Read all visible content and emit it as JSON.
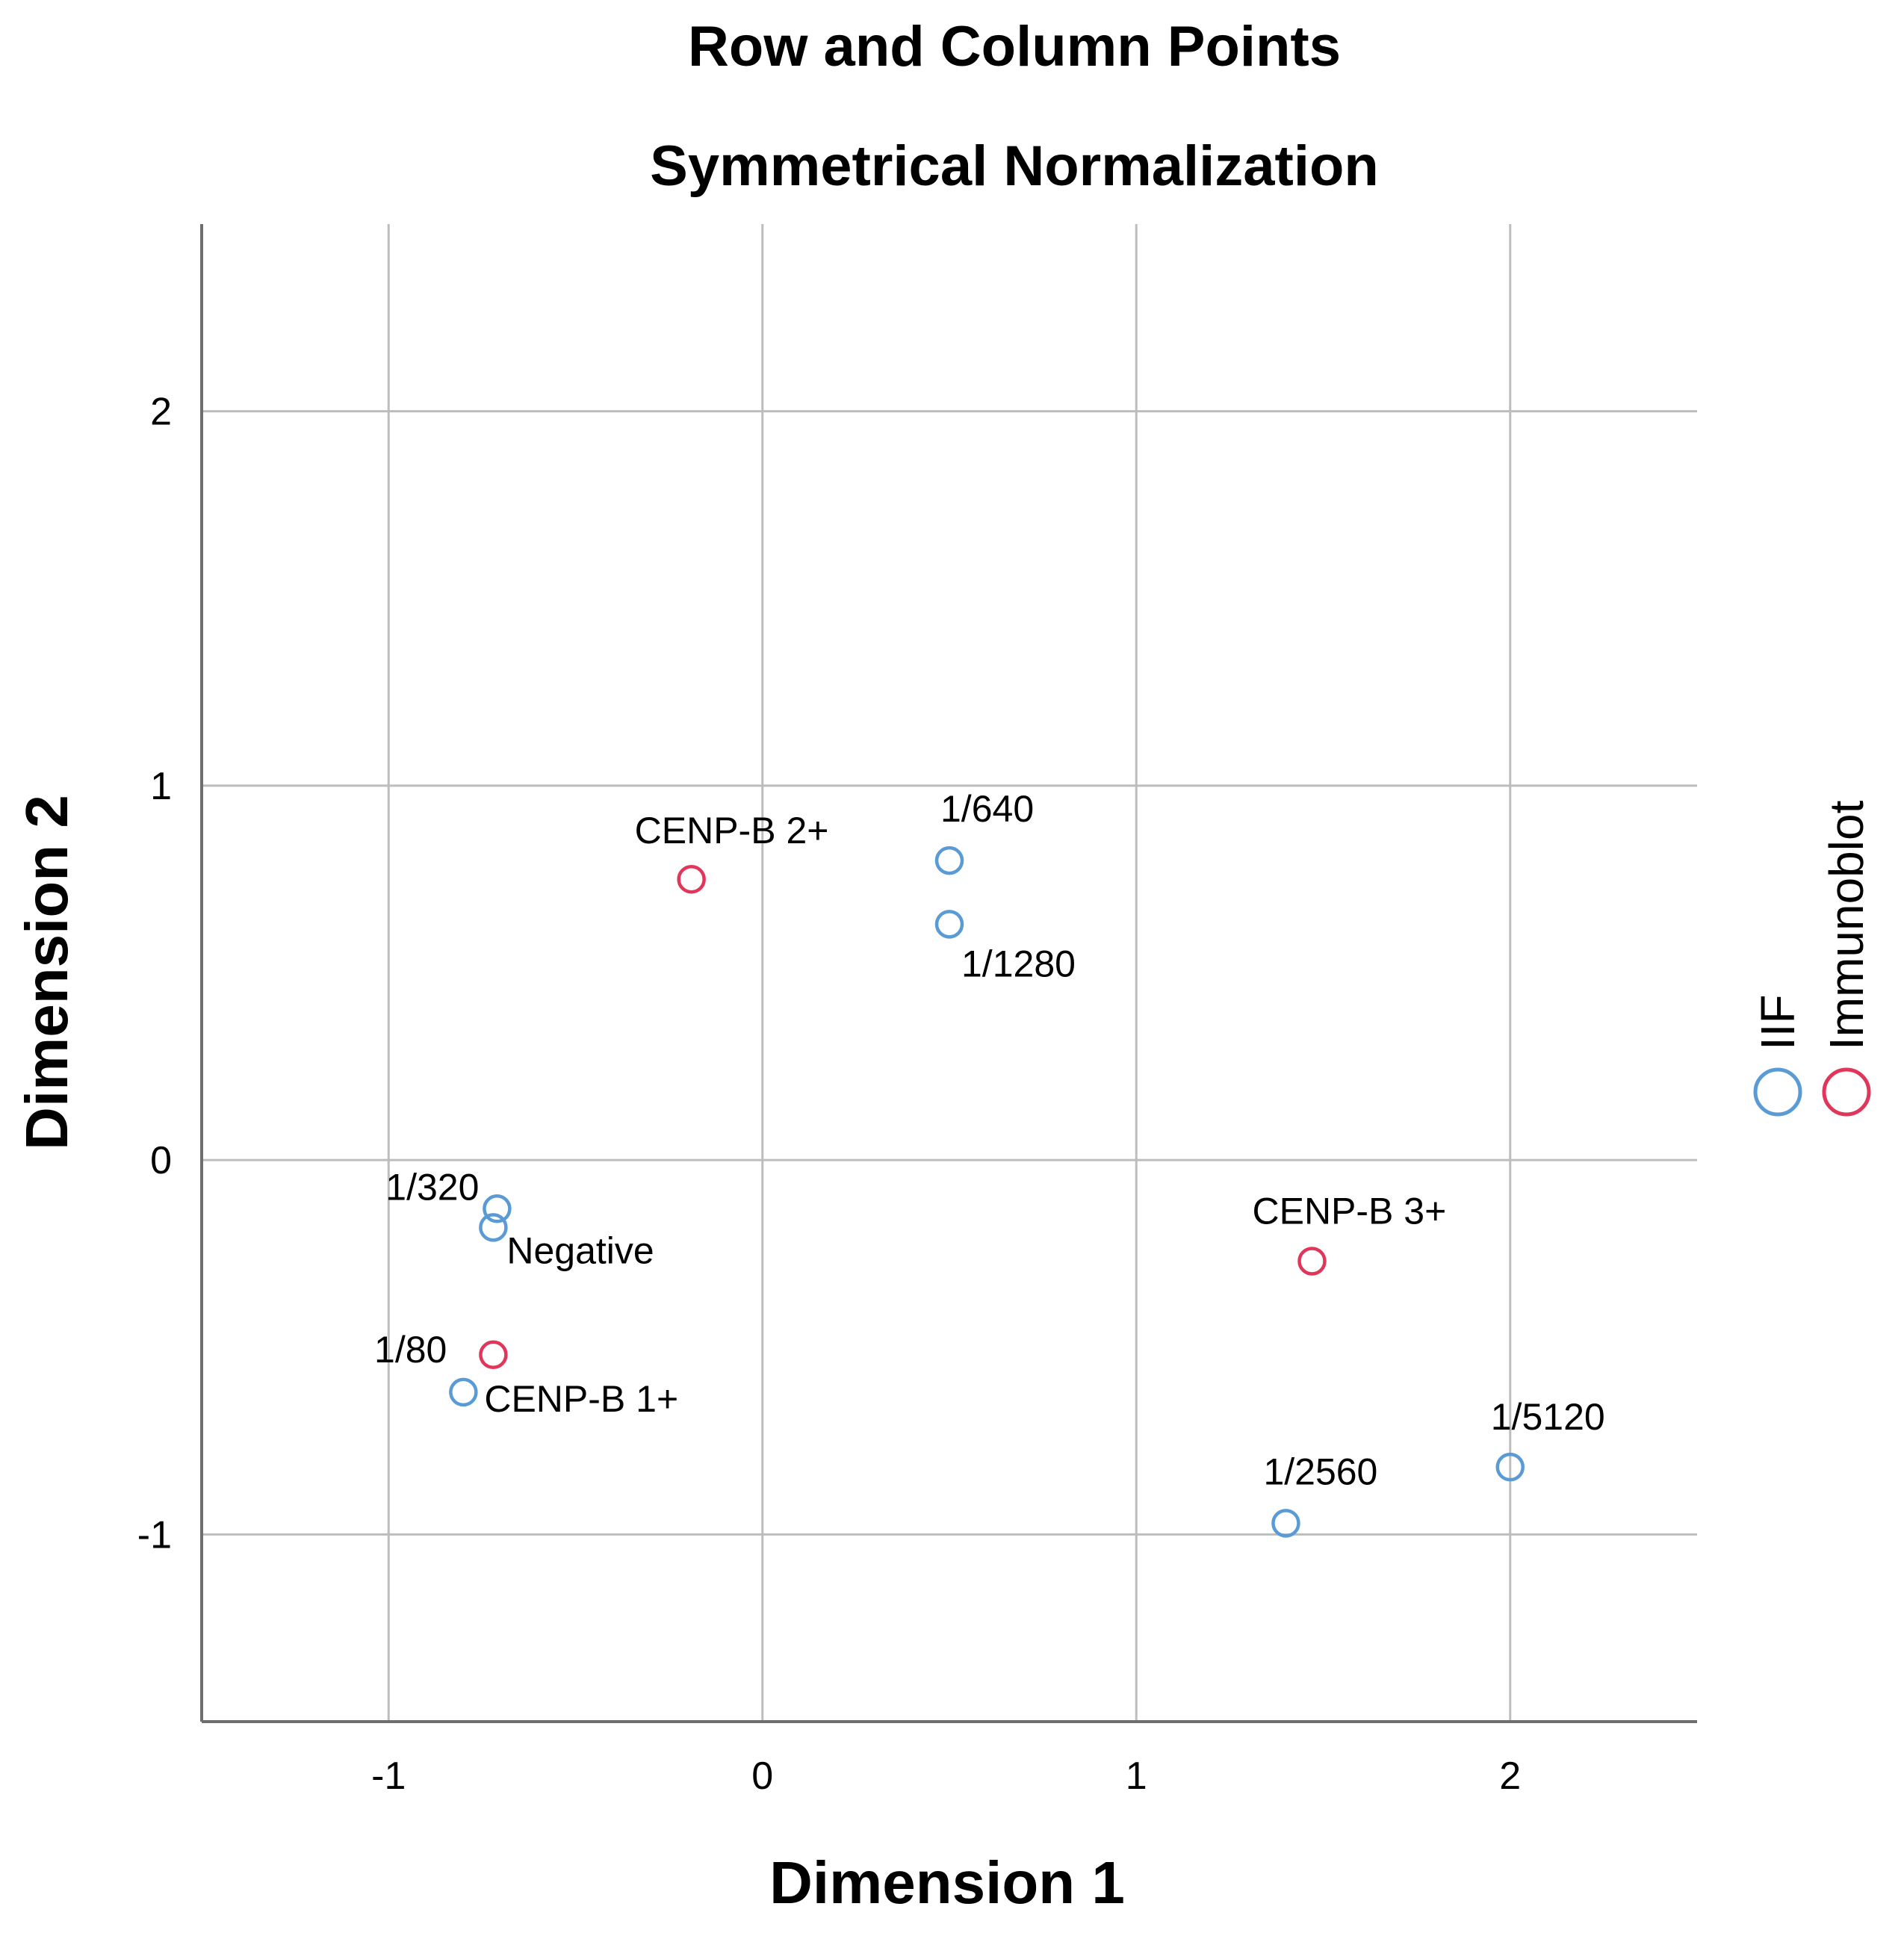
{
  "chart_data": {
    "type": "scatter",
    "title": "Row and Column Points",
    "subtitle": "Symmetrical Normalization",
    "xlabel": "Dimension 1",
    "ylabel": "Dimension 2",
    "xlim": [
      -1.5,
      2.5
    ],
    "ylim": [
      -1.5,
      2.5
    ],
    "xticks": [
      -1,
      0,
      1,
      2
    ],
    "yticks": [
      -1,
      0,
      1,
      2
    ],
    "xtick_labels": [
      "-1",
      "0",
      "1",
      "2"
    ],
    "ytick_labels": [
      "-1",
      "0",
      "1",
      "2"
    ],
    "grid": true,
    "legend_position": "right",
    "series": [
      {
        "name": "IIF",
        "color": "#5b9bd5",
        "marker": "open-circle",
        "points": [
          {
            "label": "1/640",
            "x": 0.5,
            "y": 0.8
          },
          {
            "label": "1/1280",
            "x": 0.5,
            "y": 0.63
          },
          {
            "label": "1/320",
            "x": -0.71,
            "y": -0.13
          },
          {
            "label": "Negative",
            "x": -0.72,
            "y": -0.18
          },
          {
            "label": "CENP-B 1+",
            "x": -0.8,
            "y": -0.62
          },
          {
            "label": "1/2560",
            "x": 1.4,
            "y": -0.97
          },
          {
            "label": "1/5120",
            "x": 2.0,
            "y": -0.82
          }
        ]
      },
      {
        "name": "Immunoblot",
        "color": "#e0365a",
        "marker": "open-circle",
        "points": [
          {
            "label": "CENP-B 2+",
            "x": -0.19,
            "y": 0.75
          },
          {
            "label": "CENP-B 3+",
            "x": 1.47,
            "y": -0.27
          },
          {
            "label": "1/80",
            "x": -0.72,
            "y": -0.52
          }
        ]
      }
    ]
  }
}
